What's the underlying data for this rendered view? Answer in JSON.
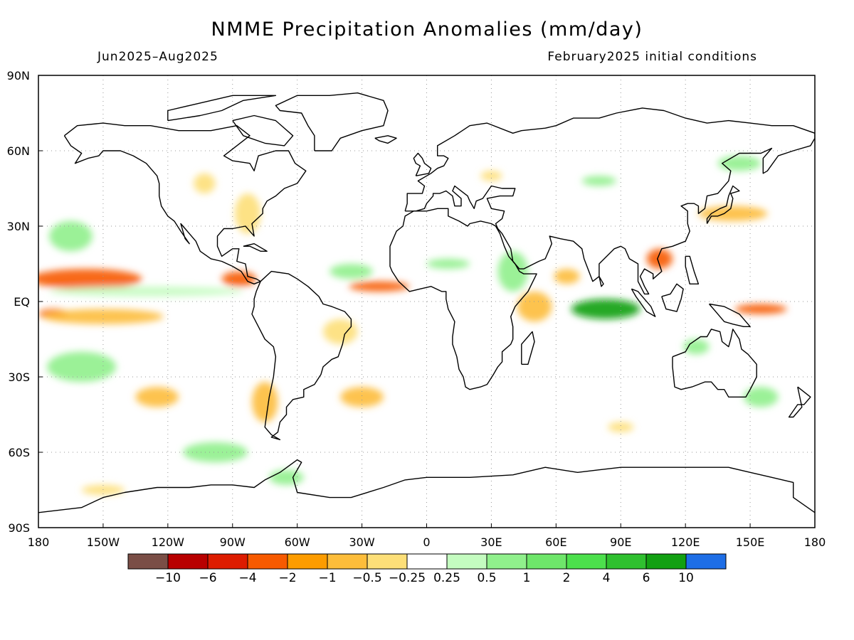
{
  "title": "NMME Precipitation Anomalies (mm/day)",
  "period": "Jun2025–Aug2025",
  "init": "February2025 initial conditions",
  "lat_labels": [
    {
      "v": 90,
      "t": "90N"
    },
    {
      "v": 60,
      "t": "60N"
    },
    {
      "v": 30,
      "t": "30N"
    },
    {
      "v": 0,
      "t": "EQ"
    },
    {
      "v": -30,
      "t": "30S"
    },
    {
      "v": -60,
      "t": "60S"
    },
    {
      "v": -90,
      "t": "90S"
    }
  ],
  "lon_labels": [
    {
      "v": -180,
      "t": "180"
    },
    {
      "v": -150,
      "t": "150W"
    },
    {
      "v": -120,
      "t": "120W"
    },
    {
      "v": -90,
      "t": "90W"
    },
    {
      "v": -60,
      "t": "60W"
    },
    {
      "v": -30,
      "t": "30W"
    },
    {
      "v": 0,
      "t": "0"
    },
    {
      "v": 30,
      "t": "30E"
    },
    {
      "v": 60,
      "t": "60E"
    },
    {
      "v": 90,
      "t": "90E"
    },
    {
      "v": 120,
      "t": "120E"
    },
    {
      "v": 150,
      "t": "150E"
    },
    {
      "v": 180,
      "t": "180"
    }
  ],
  "colorbar": {
    "colors": [
      "#7a4e46",
      "#b80000",
      "#dd1c00",
      "#f75a00",
      "#fd9c00",
      "#fdbd3a",
      "#fddf78",
      "#ffffff",
      "#c4fcc0",
      "#90f08c",
      "#6ee66a",
      "#4ce04c",
      "#2fc02f",
      "#12a012",
      "#1e6ee6"
    ],
    "labels": [
      "−10",
      "−6",
      "−4",
      "−2",
      "−1",
      "−0.5",
      "−0.25",
      "0.25",
      "0.5",
      "1",
      "2",
      "4",
      "6",
      "10"
    ]
  },
  "anomalies": [
    {
      "lon": -158,
      "lat": 9,
      "rx": 26,
      "ry": 4,
      "c": "#f75a00"
    },
    {
      "lon": -173,
      "lat": -5,
      "rx": 7,
      "ry": 2,
      "c": "#f75a00"
    },
    {
      "lon": -87,
      "lat": 9,
      "rx": 8,
      "ry": 3,
      "c": "#f75a00"
    },
    {
      "lon": -22,
      "lat": 6,
      "rx": 14,
      "ry": 2,
      "c": "#f75a00"
    },
    {
      "lon": 155,
      "lat": -3,
      "rx": 12,
      "ry": 2,
      "c": "#f75a00"
    },
    {
      "lon": 108,
      "lat": 17,
      "rx": 6,
      "ry": 4,
      "c": "#f75a00"
    },
    {
      "lon": 83,
      "lat": -3,
      "rx": 16,
      "ry": 4,
      "c": "#12a012"
    },
    {
      "lon": -130,
      "lat": 4,
      "rx": 45,
      "ry": 2,
      "c": "#c4fcc0"
    },
    {
      "lon": -165,
      "lat": 26,
      "rx": 10,
      "ry": 6,
      "c": "#90f08c"
    },
    {
      "lon": -160,
      "lat": -26,
      "rx": 16,
      "ry": 6,
      "c": "#90f08c"
    },
    {
      "lon": -98,
      "lat": -60,
      "rx": 15,
      "ry": 4,
      "c": "#90f08c"
    },
    {
      "lon": -65,
      "lat": -70,
      "rx": 8,
      "ry": 3,
      "c": "#90f08c"
    },
    {
      "lon": 80,
      "lat": 48,
      "rx": 8,
      "ry": 2,
      "c": "#90f08c"
    },
    {
      "lon": 145,
      "lat": 55,
      "rx": 10,
      "ry": 3,
      "c": "#90f08c"
    },
    {
      "lon": 155,
      "lat": -38,
      "rx": 8,
      "ry": 4,
      "c": "#90f08c"
    },
    {
      "lon": 125,
      "lat": -18,
      "rx": 6,
      "ry": 3,
      "c": "#90f08c"
    },
    {
      "lon": 40,
      "lat": 12,
      "rx": 7,
      "ry": 8,
      "c": "#90f08c"
    },
    {
      "lon": 10,
      "lat": 15,
      "rx": 10,
      "ry": 2,
      "c": "#90f08c"
    },
    {
      "lon": -35,
      "lat": 12,
      "rx": 10,
      "ry": 3,
      "c": "#90f08c"
    },
    {
      "lon": -150,
      "lat": -6,
      "rx": 28,
      "ry": 3,
      "c": "#fdbd3a"
    },
    {
      "lon": -125,
      "lat": -38,
      "rx": 10,
      "ry": 4,
      "c": "#fdbd3a"
    },
    {
      "lon": -75,
      "lat": -40,
      "rx": 6,
      "ry": 8,
      "c": "#fdbd3a"
    },
    {
      "lon": -30,
      "lat": -38,
      "rx": 10,
      "ry": 4,
      "c": "#fdbd3a"
    },
    {
      "lon": -40,
      "lat": -12,
      "rx": 8,
      "ry": 5,
      "c": "#fddf78"
    },
    {
      "lon": 50,
      "lat": -2,
      "rx": 8,
      "ry": 6,
      "c": "#fdbd3a"
    },
    {
      "lon": 65,
      "lat": 10,
      "rx": 6,
      "ry": 3,
      "c": "#fdbd3a"
    },
    {
      "lon": 142,
      "lat": 35,
      "rx": 16,
      "ry": 3,
      "c": "#fdbd3a"
    },
    {
      "lon": -83,
      "lat": 35,
      "rx": 6,
      "ry": 8,
      "c": "#fddf78"
    },
    {
      "lon": -103,
      "lat": 47,
      "rx": 5,
      "ry": 4,
      "c": "#fddf78"
    },
    {
      "lon": 30,
      "lat": 50,
      "rx": 5,
      "ry": 2,
      "c": "#fddf78"
    },
    {
      "lon": 90,
      "lat": -50,
      "rx": 6,
      "ry": 2,
      "c": "#fddf78"
    },
    {
      "lon": -150,
      "lat": -75,
      "rx": 10,
      "ry": 2,
      "c": "#fddf78"
    }
  ]
}
